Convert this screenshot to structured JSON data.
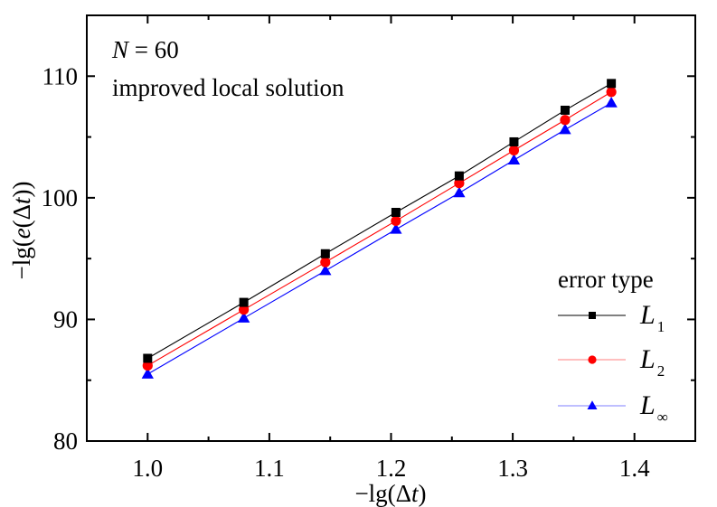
{
  "chart_data": {
    "type": "line",
    "title": "",
    "annotation": [
      "N = 60",
      "improved local solution"
    ],
    "annotation_parts": {
      "var": "N",
      "rest": " = 60",
      "line2": "improved local solution"
    },
    "xlabel": "−lg(Δt)",
    "ylabel": "−lg(e(Δt))",
    "xlabel_parts": {
      "pre": "−lg(Δ",
      "var": "t",
      "post": ")"
    },
    "ylabel_parts": {
      "pre": "−lg(",
      "var1": "e",
      "mid": "(Δ",
      "var2": "t",
      "post": "))"
    },
    "xlim": [
      0.95,
      1.45
    ],
    "ylim": [
      80,
      115
    ],
    "xticks": [
      1.0,
      1.1,
      1.2,
      1.3,
      1.4
    ],
    "xtick_labels": [
      "1.0",
      "1.1",
      "1.2",
      "1.3",
      "1.4"
    ],
    "xminor": [
      1.05,
      1.15,
      1.25,
      1.35
    ],
    "yticks": [
      80,
      90,
      100,
      110
    ],
    "ytick_labels": [
      "80",
      "90",
      "100",
      "110"
    ],
    "yminor": [
      85,
      95,
      105
    ],
    "grid": false,
    "legend": {
      "title": "error type",
      "position": "lower right",
      "entries": [
        {
          "base": "L",
          "sub": "1"
        },
        {
          "base": "L",
          "sub": "2"
        },
        {
          "base": "L",
          "sub": "∞"
        }
      ]
    },
    "x": [
      1.0,
      1.079,
      1.146,
      1.204,
      1.256,
      1.301,
      1.343,
      1.381
    ],
    "series": [
      {
        "name": "L1",
        "color": "#000000",
        "legend_line_color": "#000000",
        "marker": "square",
        "values": [
          86.8,
          91.4,
          95.4,
          98.8,
          101.8,
          104.6,
          107.2,
          109.4
        ]
      },
      {
        "name": "L2",
        "color": "#ff0000",
        "legend_line_color": "#ff7f7f",
        "marker": "circle",
        "values": [
          86.2,
          90.8,
          94.7,
          98.1,
          101.2,
          103.9,
          106.4,
          108.7
        ]
      },
      {
        "name": "L∞",
        "color": "#0000ff",
        "legend_line_color": "#7f7fff",
        "marker": "triangle",
        "values": [
          85.5,
          90.1,
          94.0,
          97.4,
          100.4,
          103.1,
          105.6,
          107.8
        ]
      }
    ]
  }
}
